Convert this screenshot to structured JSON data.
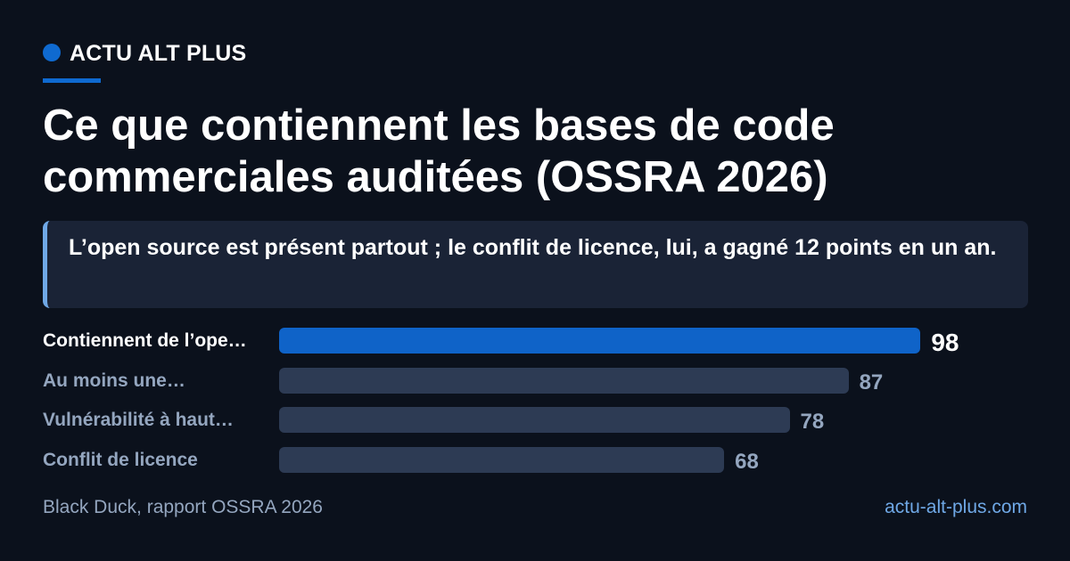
{
  "brand": {
    "name": "ACTU ALT PLUS",
    "accent_color": "#0f6ad0"
  },
  "title": "Ce que contiennent les bases de code commerciales auditées (OSSRA 2026)",
  "subtitle": "L’open source est présent partout ; le conflit de licence, lui, a gagné 12 points en un an.",
  "chart_data": {
    "type": "bar",
    "orientation": "horizontal",
    "categories": [
      "Contiennent de l’ope…",
      "Au moins une…",
      "Vulnérabilité à haut…",
      "Conflit de licence"
    ],
    "values": [
      98,
      87,
      78,
      68
    ],
    "highlight_index": 0,
    "highlight_color": "#0f63c8",
    "bar_color": "#2d3b54",
    "value_labels": true,
    "xlim": [
      0,
      100
    ],
    "grid": false,
    "legend": "none"
  },
  "footer": {
    "source": "Black Duck, rapport OSSRA 2026",
    "site": "actu-alt-plus.com"
  }
}
